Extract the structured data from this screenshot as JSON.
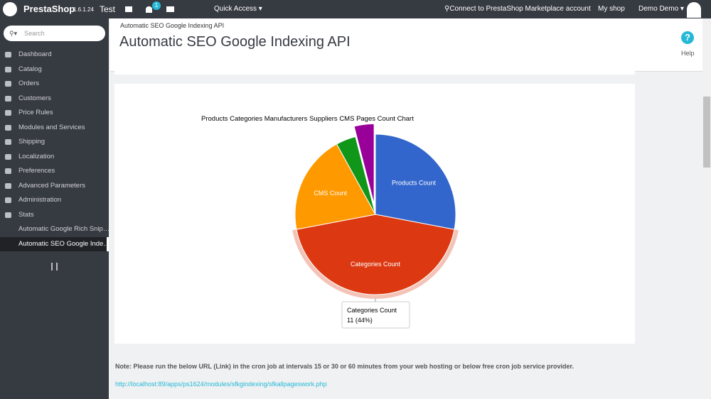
{
  "header": {
    "brand": "PrestaShop",
    "version": "1.6.1.24",
    "shop": "Test",
    "badge": "1",
    "quick_access": "Quick Access",
    "connect": "Connect to PrestaShop Marketplace account",
    "my_shop": "My shop",
    "user": "Demo Demo"
  },
  "sidebar": {
    "search": "Search",
    "items": [
      "Dashboard",
      "Catalog",
      "Orders",
      "Customers",
      "Price Rules",
      "Modules and Services",
      "Shipping",
      "Localization",
      "Preferences",
      "Advanced Parameters",
      "Administration",
      "Stats",
      "Automatic Google Rich Snip…",
      "Automatic SEO Google Inde…"
    ]
  },
  "page": {
    "breadcrumb": "Automatic SEO Google Indexing API",
    "title": "Automatic SEO Google Indexing API",
    "help": "Help"
  },
  "chart_data": {
    "type": "pie",
    "title": "Products Categories Manufacturers Suppliers CMS Pages Count Chart",
    "categories": [
      "Products Count",
      "Categories Count",
      "CMS Count",
      null,
      null
    ],
    "values": [
      7,
      11,
      5,
      1,
      1
    ],
    "colors": [
      "#3366cc",
      "#dc3912",
      "#ff9900",
      "#109618",
      "#990099"
    ],
    "exploded": 4,
    "highlighted": 1,
    "tooltip": "11 (44%)"
  },
  "note": {
    "text": "Note: Please run the below URL (Link) in the cron job at intervals 15 or 30 or 60 minutes from your web hosting or below free cron job service provider.",
    "link": "http://localhost:89/apps/ps1624/modules/sfkgindexing/sfkallpageswork.php"
  }
}
